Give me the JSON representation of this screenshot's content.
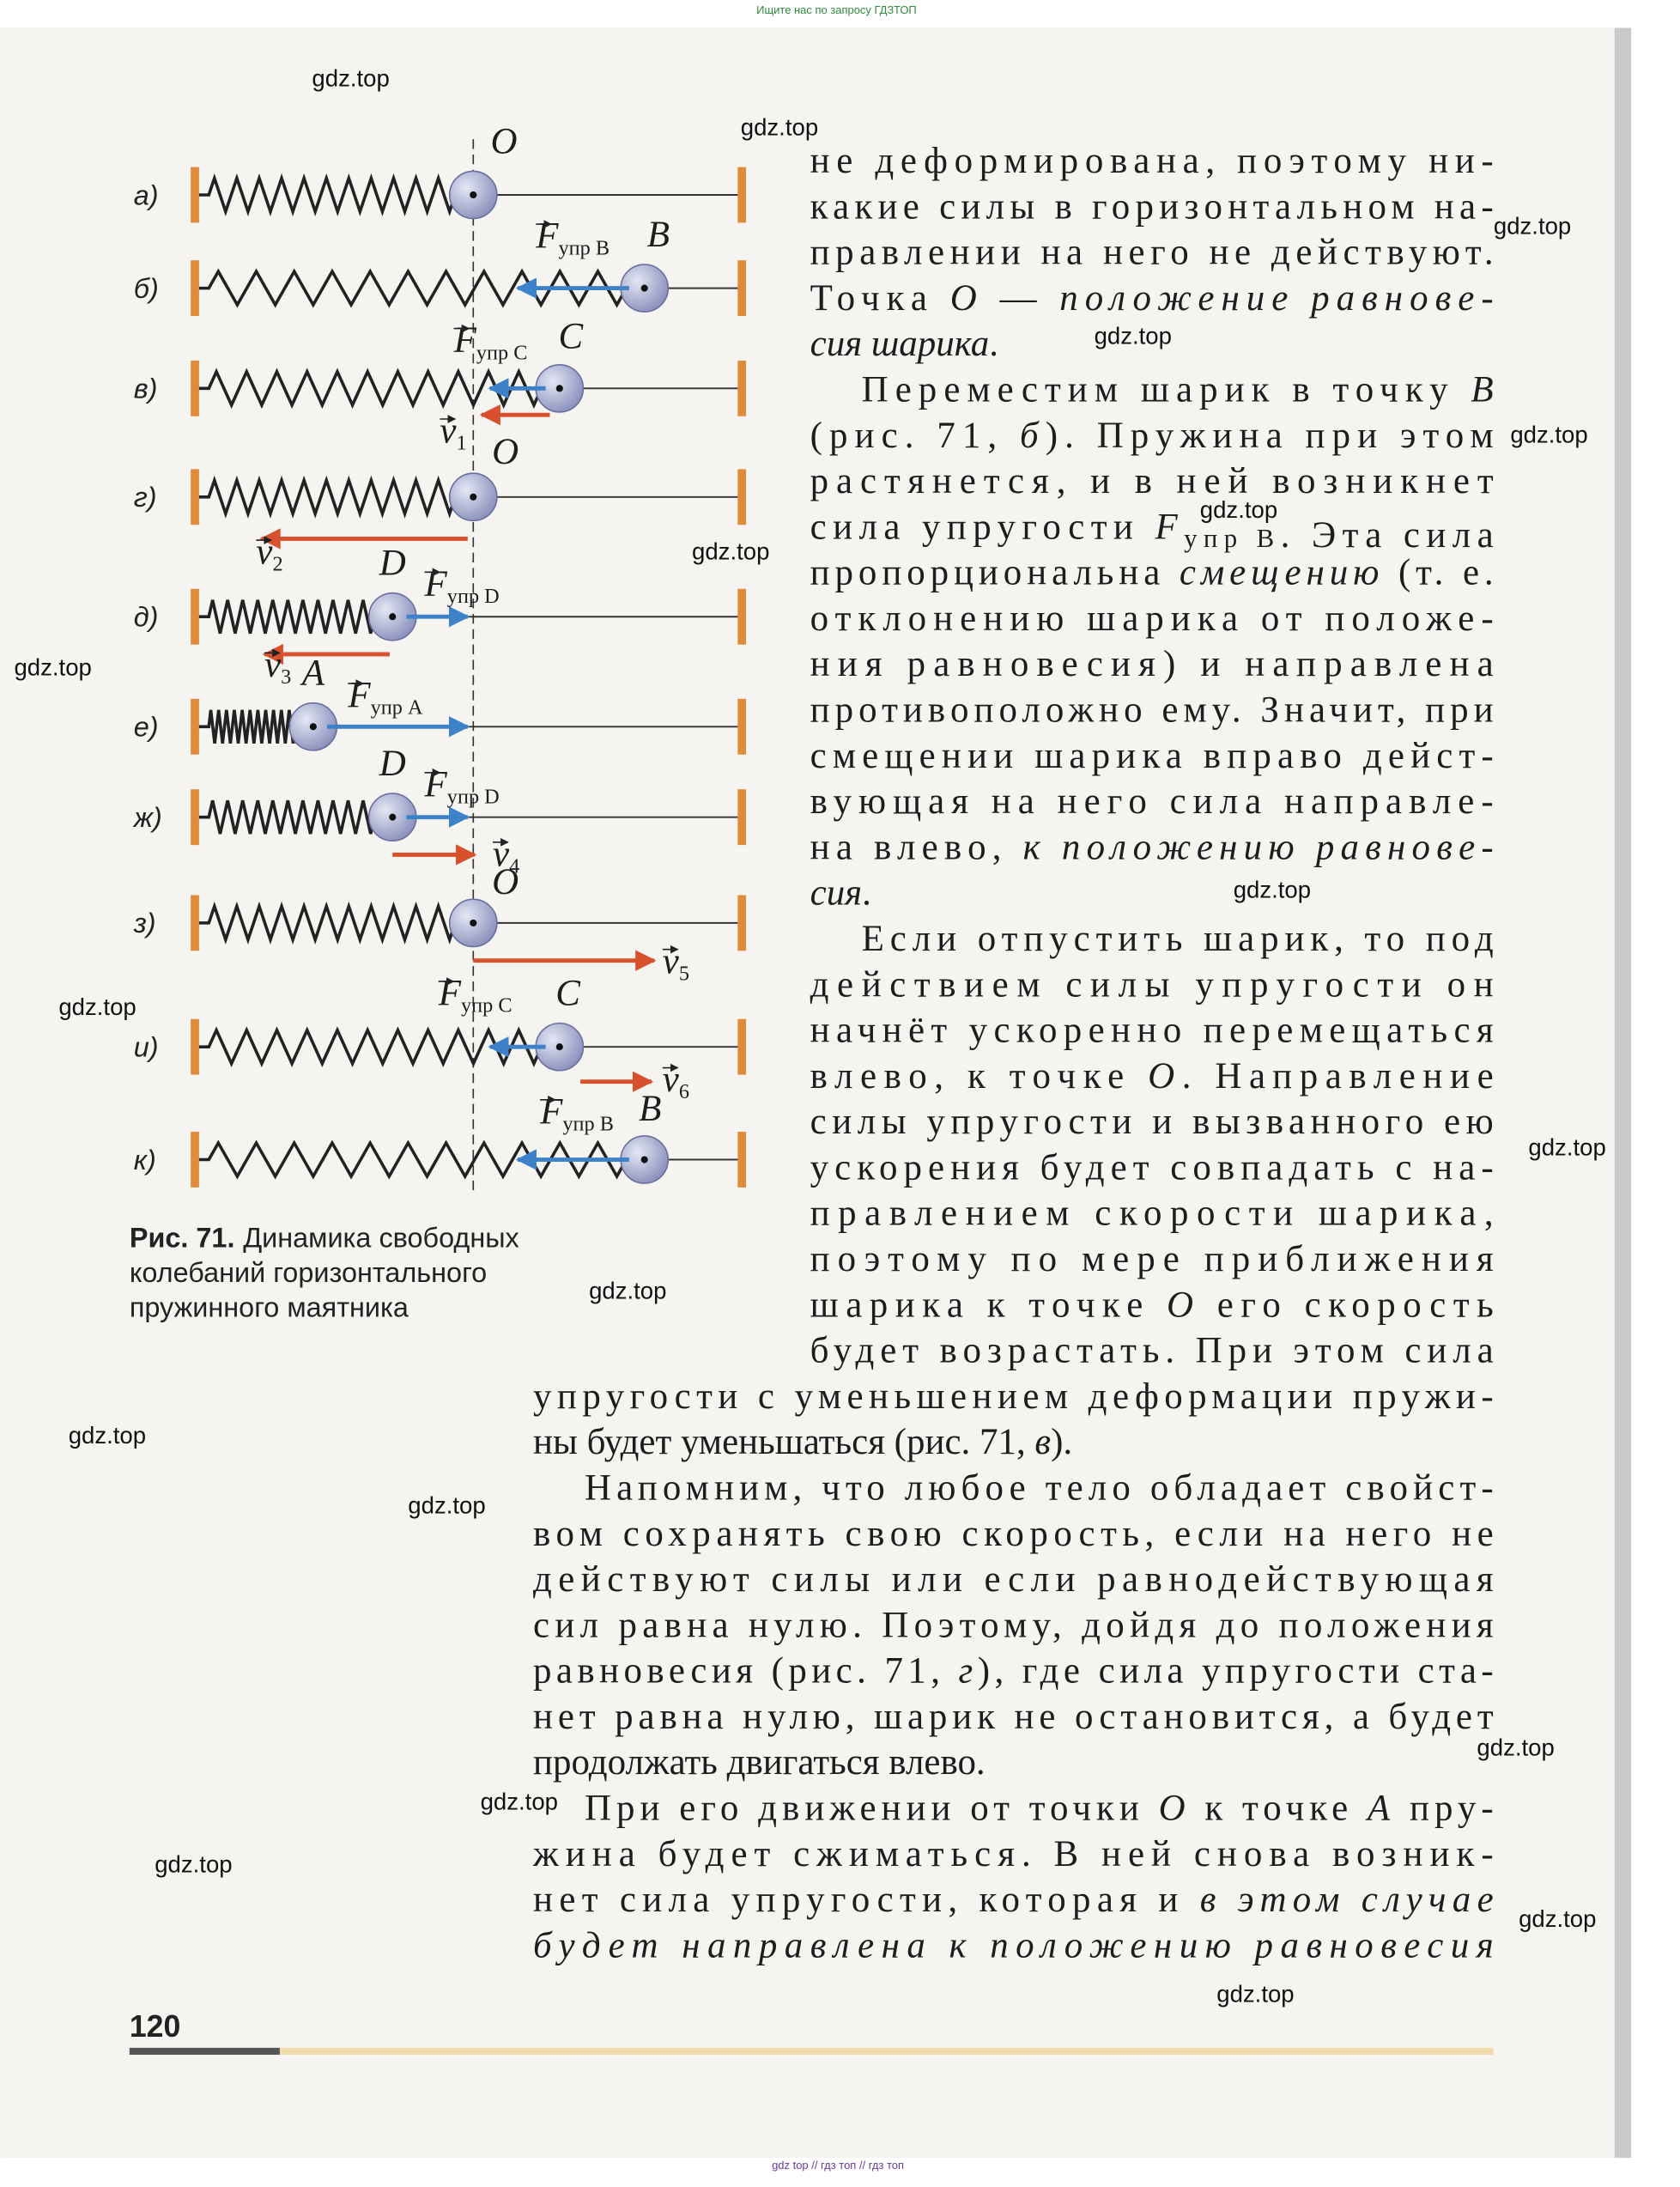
{
  "header_note": "Ищите нас по запросу ГДЗТОП",
  "footer_note": "gdz top // гдз топ // гдз топ",
  "watermarks": [
    "gdz.top",
    "gdz.top",
    "gdz.top",
    "gdz.top",
    "gdz.top",
    "gdz.top",
    "gdz.top",
    "gdz.top",
    "gdz.top",
    "gdz.top",
    "gdz.top",
    "gdz.top",
    "gdz.top",
    "gdz.top",
    "gdz.top",
    "gdz.top",
    "gdz.top",
    "gdz.top",
    "gdz.top"
  ],
  "figure": {
    "rows": [
      {
        "label": "а)",
        "point": "O"
      },
      {
        "label": "б)",
        "point": "B",
        "force": {
          "vector": "F",
          "subscript": "упр B"
        }
      },
      {
        "label": "в)",
        "point": "C",
        "force": {
          "vector": "F",
          "subscript": "упр C"
        },
        "velocity": {
          "vector": "v",
          "subscript": "1"
        }
      },
      {
        "label": "г)",
        "point": "O",
        "velocity": {
          "vector": "v",
          "subscript": "2"
        }
      },
      {
        "label": "д)",
        "point": "D",
        "force": {
          "vector": "F",
          "subscript": "упр D"
        },
        "velocity": {
          "vector": "v",
          "subscript": "3"
        }
      },
      {
        "label": "е)",
        "point": "A",
        "force": {
          "vector": "F",
          "subscript": "упр A"
        }
      },
      {
        "label": "ж)",
        "point": "D",
        "force": {
          "vector": "F",
          "subscript": "упр D"
        },
        "velocity": {
          "vector": "v",
          "subscript": "4"
        }
      },
      {
        "label": "з)",
        "point": "O",
        "velocity": {
          "vector": "v",
          "subscript": "5"
        }
      },
      {
        "label": "и)",
        "point": "C",
        "force": {
          "vector": "F",
          "subscript": "упр C"
        },
        "velocity": {
          "vector": "v",
          "subscript": "6"
        }
      },
      {
        "label": "к)",
        "point": "B",
        "force": {
          "vector": "F",
          "subscript": "упр B"
        }
      }
    ],
    "caption": {
      "label": "Рис. 71.",
      "lines": [
        "Динамика свободных",
        "колебаний горизонтального",
        "пружинного маятника"
      ]
    }
  },
  "text": {
    "paragraphs": [
      {
        "lines": [
          [
            "не деформирована, поэтому ни-"
          ],
          [
            "какие силы в горизонтальном на-"
          ],
          [
            "правлении на него не действуют."
          ],
          [
            "Точка ",
            {
              "italic": "O"
            },
            " — ",
            {
              "italic": "положение равнове-"
            }
          ],
          [
            {
              "italic": "сия шарика"
            },
            "."
          ]
        ]
      },
      {
        "lines": [
          [
            "Переместим шарик в точку ",
            {
              "italic": "B"
            }
          ],
          [
            "(рис. 71, ",
            {
              "italic": "б"
            },
            "). Пружина при этом"
          ],
          [
            "растянется, и в ней возникнет"
          ],
          [
            "сила упругости ",
            {
              "vector": "F",
              "subscript": "упр B"
            },
            ". Эта сила"
          ],
          [
            "пропорциональна ",
            {
              "italic": "смещению"
            },
            " (т. е."
          ],
          [
            "отклонению шарика от положе-"
          ],
          [
            "ния равновесия) и направлена"
          ],
          [
            "противоположно ему. Значит, при"
          ],
          [
            "смещении шарика вправо дейст-"
          ],
          [
            "вующая на него сила направле-"
          ],
          [
            "на влево, ",
            {
              "italic": "к положению равнове-"
            }
          ],
          [
            {
              "italic": "сия"
            },
            "."
          ]
        ]
      },
      {
        "lines": [
          [
            "Если отпустить шарик, то под"
          ],
          [
            "действием силы упругости он"
          ],
          [
            "начнёт ускоренно перемещаться"
          ],
          [
            "влево, к точке ",
            {
              "italic": "O"
            },
            ". Направление"
          ],
          [
            "силы упругости и вызванного ею"
          ],
          [
            "ускорения будет совпадать с на-"
          ],
          [
            "правлением скорости шарика,"
          ],
          [
            "поэтому по мере приближения"
          ],
          [
            "шарика к точке ",
            {
              "italic": "O"
            },
            " его скорость"
          ],
          [
            "будет возрастать. При этом сила"
          ],
          [
            "упругости с уменьшением деформации пружи-"
          ],
          [
            "ны будет уменьшаться (рис. 71, ",
            {
              "italic": "в"
            },
            ")."
          ]
        ]
      },
      {
        "lines": [
          [
            "Напомним, что любое тело обладает свойст-"
          ],
          [
            "вом сохранять свою скорость, если на него не"
          ],
          [
            "действуют силы или если равнодействующая"
          ],
          [
            "сил равна нулю. Поэтому, дойдя до положения"
          ],
          [
            "равновесия (рис. 71, ",
            {
              "italic": "г"
            },
            "), где сила упругости ста-"
          ],
          [
            "нет равна нулю, шарик не остановится, а будет"
          ],
          [
            "продолжать двигаться влево."
          ]
        ]
      },
      {
        "lines": [
          [
            "При его движении от точки ",
            {
              "italic": "O"
            },
            " к точке ",
            {
              "italic": "A"
            },
            " пру-"
          ],
          [
            "жина будет сжиматься. В ней снова возник-"
          ],
          [
            "нет сила упругости, которая и ",
            {
              "italic": "в этом случае"
            }
          ],
          [
            {
              "italic": "будет направлена к положению равновесия"
            }
          ]
        ]
      }
    ]
  },
  "page_number": "120"
}
